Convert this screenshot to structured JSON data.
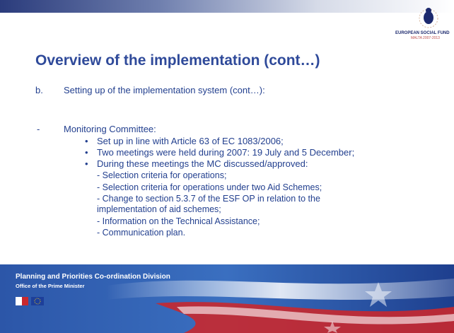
{
  "header": {
    "logo_text": "EUROPEAN SOCIAL FUND",
    "logo_subtext": "MALTA 2007-2013"
  },
  "title": "Overview of the implementation (cont…)",
  "body": {
    "section": {
      "marker": "b.",
      "text": "Setting up of the implementation system (cont…):"
    },
    "item": {
      "marker": "-",
      "text": "Monitoring Committee:"
    },
    "bullets": [
      {
        "marker": "•",
        "text": "Set up in line with Article 63 of EC 1083/2006;"
      },
      {
        "marker": "•",
        "text": "Two meetings were held during 2007: 19 July and 5 December;"
      },
      {
        "marker": "•",
        "text": "During these meetings the MC discussed/approved:"
      }
    ],
    "subitems": [
      {
        "lines": [
          "- Selection criteria for operations;"
        ]
      },
      {
        "lines": [
          "- Selection criteria for operations under two Aid Schemes;"
        ]
      },
      {
        "lines": [
          "- Change to section 5.3.7 of the ESF OP in relation to the",
          "implementation of aid schemes;"
        ]
      },
      {
        "lines": [
          "- Information on the Technical Assistance;"
        ]
      },
      {
        "lines": [
          "- Communication plan."
        ]
      }
    ]
  },
  "footer": {
    "division": "Planning and Priorities Co-ordination Division",
    "office": "Office of the Prime Minister"
  }
}
